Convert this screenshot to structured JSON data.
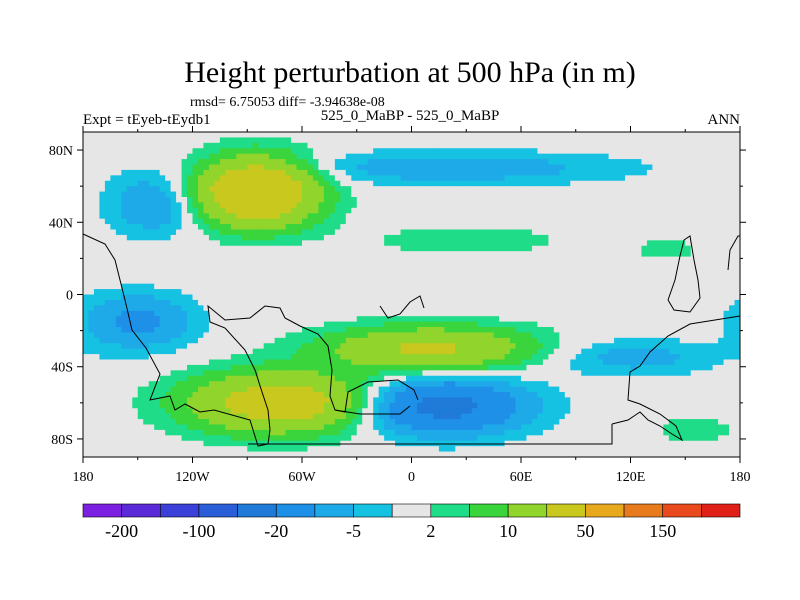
{
  "chart_data": {
    "type": "heatmap",
    "title": "Height perturbation at 500 hPa (in m)",
    "stats": "rmsd= 6.75053 diff= -3.94638e-08",
    "subtitle_left": "Expt = tEyeb-tEydb1",
    "subtitle_center": "525_0_MaBP - 525_0_MaBP",
    "subtitle_right": "ANN",
    "xlim": [
      -180,
      180
    ],
    "ylim": [
      -90,
      90
    ],
    "x_ticks": [
      {
        "value": -180,
        "label": "180"
      },
      {
        "value": -120,
        "label": "120W"
      },
      {
        "value": -60,
        "label": "60W"
      },
      {
        "value": 0,
        "label": "0"
      },
      {
        "value": 60,
        "label": "60E"
      },
      {
        "value": 120,
        "label": "120E"
      },
      {
        "value": 180,
        "label": "180"
      }
    ],
    "y_ticks": [
      {
        "value": 80,
        "label": "80N"
      },
      {
        "value": 40,
        "label": "40N"
      },
      {
        "value": 0,
        "label": "0"
      },
      {
        "value": -40,
        "label": "40S"
      },
      {
        "value": -80,
        "label": "80S"
      }
    ],
    "colorbar": {
      "colors": [
        "#7b1fe0",
        "#5a2ad8",
        "#3a40d8",
        "#2a5ed8",
        "#1f7ad8",
        "#1e90e8",
        "#1eaae8",
        "#16c2e2",
        "#e6e6e6",
        "#1fdc88",
        "#3ad43c",
        "#90d42c",
        "#c8c81e",
        "#e8a81e",
        "#e87a1e",
        "#e84a1e",
        "#e02018"
      ],
      "labels": [
        {
          "boundary": 1,
          "text": "-200"
        },
        {
          "boundary": 3,
          "text": "-100"
        },
        {
          "boundary": 5,
          "text": "-20"
        },
        {
          "boundary": 7,
          "text": "-5"
        },
        {
          "boundary": 9,
          "text": "2"
        },
        {
          "boundary": 11,
          "text": "10"
        },
        {
          "boundary": 13,
          "text": "50"
        },
        {
          "boundary": 15,
          "text": "150"
        }
      ]
    },
    "field": {
      "levels": [
        -200,
        -150,
        -100,
        -50,
        -20,
        -10,
        -5,
        -2,
        2,
        5,
        10,
        20,
        50,
        100,
        150,
        200
      ],
      "anomalies": [
        {
          "lon": -85,
          "lat": 57,
          "dlon": 32,
          "dlat": 18,
          "amp": 40
        },
        {
          "lon": -140,
          "lat": 50,
          "dlon": 25,
          "dlat": 17,
          "amp": -10
        },
        {
          "lon": 20,
          "lat": 70,
          "dlon": 95,
          "dlat": 9,
          "amp": -8
        },
        {
          "lon": 30,
          "lat": 30,
          "dlon": 55,
          "dlat": 9,
          "amp": 4
        },
        {
          "lon": 140,
          "lat": 25,
          "dlon": 22,
          "dlat": 8,
          "amp": 3
        },
        {
          "lon": -150,
          "lat": -15,
          "dlon": 30,
          "dlat": 15,
          "amp": -12
        },
        {
          "lon": 10,
          "lat": -30,
          "dlon": 55,
          "dlat": 12,
          "amp": 22
        },
        {
          "lon": -70,
          "lat": -60,
          "dlon": 50,
          "dlat": 16,
          "amp": 30
        },
        {
          "lon": 15,
          "lat": -62,
          "dlon": 45,
          "dlat": 15,
          "amp": -25
        },
        {
          "lon": 120,
          "lat": -35,
          "dlon": 45,
          "dlat": 10,
          "amp": -7
        },
        {
          "lon": 155,
          "lat": -75,
          "dlon": 28,
          "dlat": 10,
          "amp": 3
        }
      ]
    }
  }
}
